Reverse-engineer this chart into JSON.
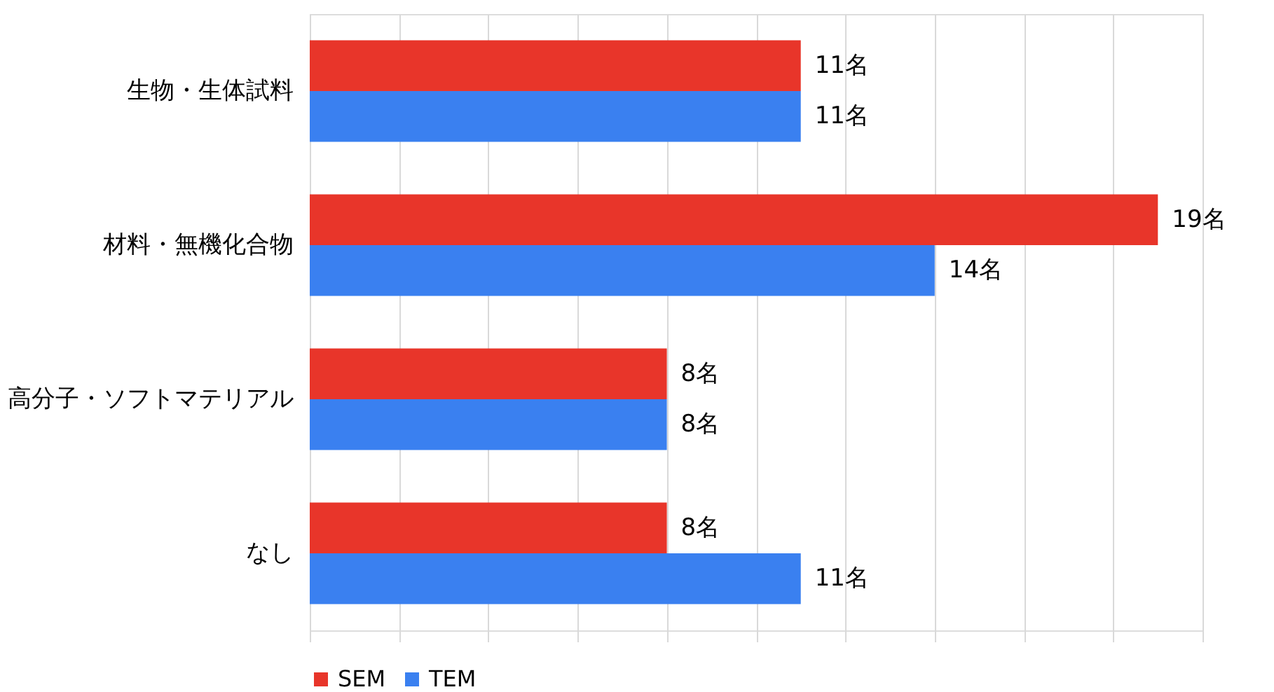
{
  "chart_data": {
    "type": "bar",
    "orientation": "horizontal",
    "categories": [
      "生物・生体試料",
      "材料・無機化合物",
      "高分子・ソフトマテリアル",
      "なし"
    ],
    "series": [
      {
        "name": "SEM",
        "color": "#e8352a",
        "values": [
          11,
          19,
          8,
          8
        ],
        "value_labels": [
          "11名",
          "19名",
          "8名",
          "8名"
        ]
      },
      {
        "name": "TEM",
        "color": "#3a80f0",
        "values": [
          11,
          14,
          8,
          11
        ],
        "value_labels": [
          "11名",
          "14名",
          "8名",
          "11名"
        ]
      }
    ],
    "xlim": [
      0,
      20
    ],
    "xticks": [
      {
        "value": 0,
        "label": null
      },
      {
        "value": 2,
        "label": null
      },
      {
        "value": 4,
        "label": null
      },
      {
        "value": 6,
        "label": null
      },
      {
        "value": 8,
        "label": null
      },
      {
        "value": 10,
        "label": null
      },
      {
        "value": 12,
        "label": null
      },
      {
        "value": 14,
        "label": null
      },
      {
        "value": 16,
        "label": null
      },
      {
        "value": 18,
        "label": null
      },
      {
        "value": 20,
        "label": null
      }
    ],
    "grid": "x",
    "tick_labels": "y",
    "legend": "bottom"
  }
}
